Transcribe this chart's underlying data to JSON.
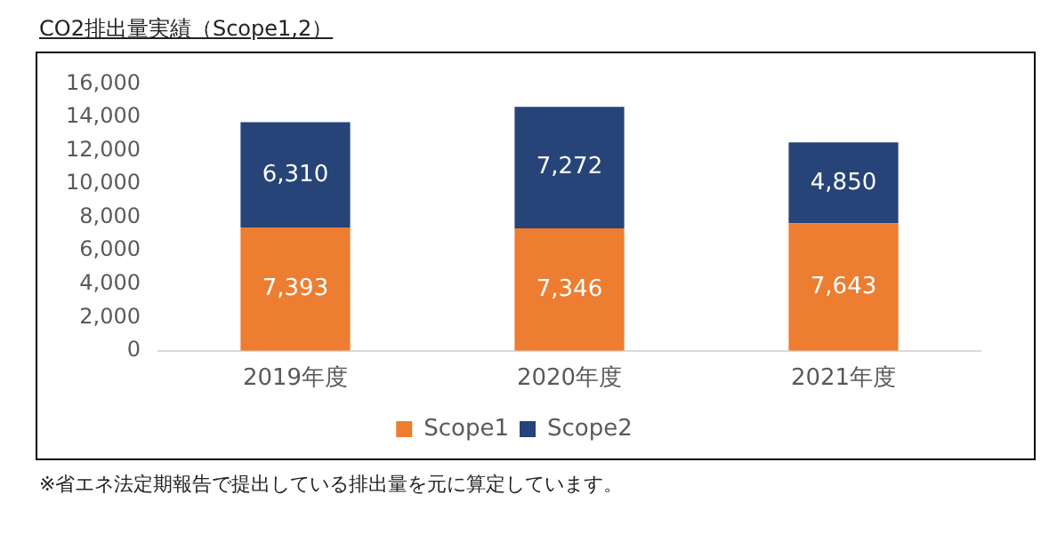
{
  "chart_data": {
    "type": "bar",
    "title": "CO2排出量実績（Scope1,2）",
    "categories": [
      "2019年度",
      "2020年度",
      "2021年度"
    ],
    "stacked": true,
    "series": [
      {
        "name": "Scope1",
        "color": "#ed7d31",
        "values": [
          7393,
          7346,
          7643
        ],
        "value_labels": [
          "7,393",
          "7,346",
          "7,643"
        ]
      },
      {
        "name": "Scope2",
        "color": "#264478",
        "values": [
          6310,
          7272,
          4850
        ],
        "value_labels": [
          "6,310",
          "7,272",
          "4,850"
        ]
      }
    ],
    "ylim": [
      0,
      16000
    ],
    "yticks": [
      {
        "value": 0,
        "label": "0"
      },
      {
        "value": 2000,
        "label": "2,000"
      },
      {
        "value": 4000,
        "label": "4,000"
      },
      {
        "value": 6000,
        "label": "6,000"
      },
      {
        "value": 8000,
        "label": "8,000"
      },
      {
        "value": 10000,
        "label": "10,000"
      },
      {
        "value": 12000,
        "label": "12,000"
      },
      {
        "value": 14000,
        "label": "14,000"
      },
      {
        "value": 16000,
        "label": "16,000"
      }
    ],
    "grid": false,
    "legend": "bottom",
    "annotations": [
      "※省エネ法定期報告で提出している排出量を元に算定しています。"
    ]
  }
}
